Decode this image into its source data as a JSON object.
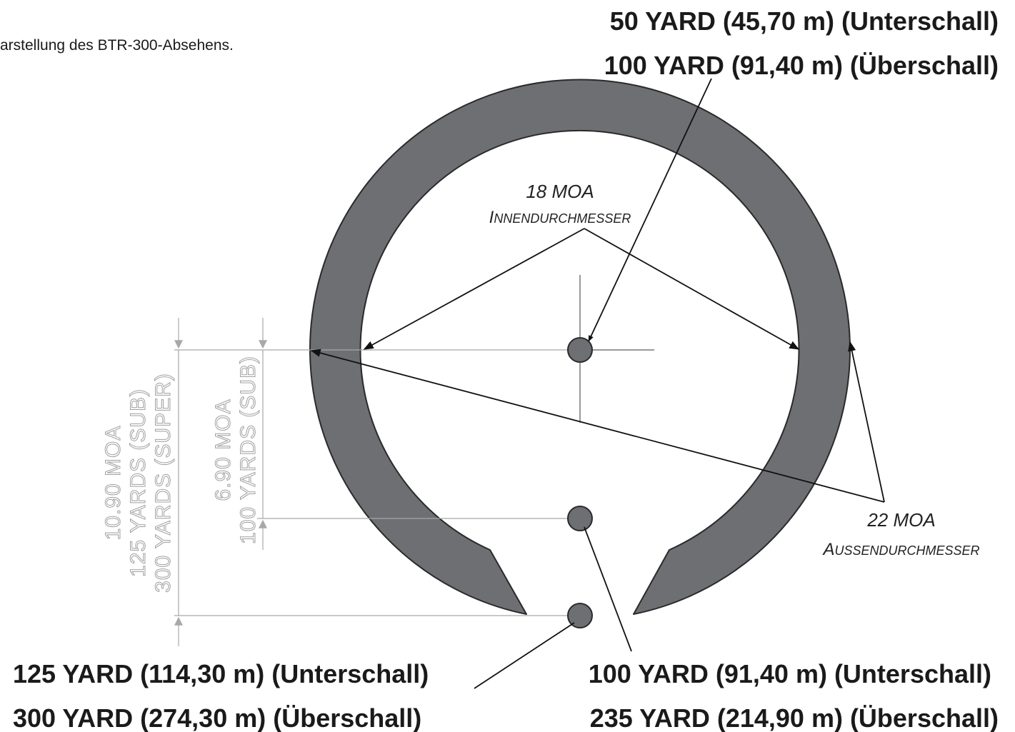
{
  "caption": "arstellung des BTR-300-Absehens.",
  "top_label": {
    "line1": "50 YARD (45,70 m) (Unterschall)",
    "line2": "100 YARD (91,40 m) (Überschall)"
  },
  "inner_diameter": {
    "value": "18 MOA",
    "label_first": "I",
    "label_rest": "NNENDURCHMESSER"
  },
  "outer_diameter": {
    "value": "22 MOA",
    "label_first": "A",
    "label_rest": "USSENDURCHMESSER"
  },
  "dim_small": {
    "line1": "6.90 MOA",
    "line2": "100 YARDS (SUB)"
  },
  "dim_large": {
    "line1": "10.90 MOA",
    "line2": "125 YARDS (SUB)",
    "line3": "300 YARDS (SUPER)"
  },
  "bottom_left_label": {
    "line1": "125 YARD (114,30 m) (Unterschall)",
    "line2": "300 YARD (274,30 m) (Überschall)"
  },
  "bottom_right_label": {
    "line1": "100 YARD (91,40 m) (Unterschall)",
    "line2": "235 YARD (214,90 m) (Überschall)"
  },
  "colors": {
    "ring": "#6e6f73",
    "dots": "#6e6f73",
    "dimension_gray": "#a0a0a0",
    "text": "#1a1a1a"
  }
}
